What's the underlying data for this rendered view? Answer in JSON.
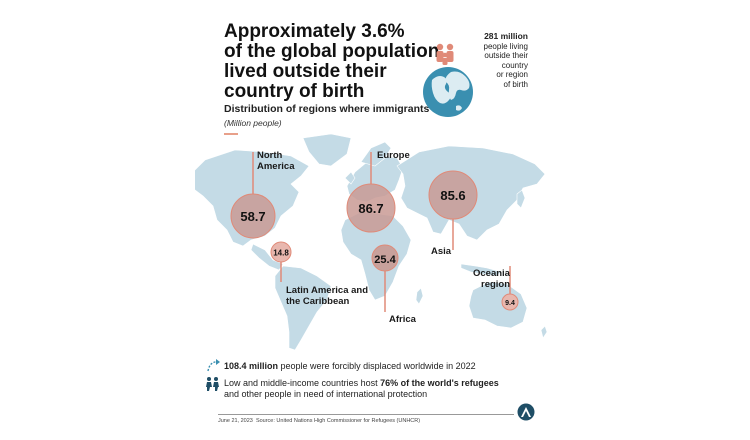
{
  "title_line1": "Approximately 3.6%",
  "title_line2": "of the global population",
  "title_line3": "lived outside their",
  "title_line4": "country of birth",
  "subtitle": "Distribution of regions where immigrants live",
  "unit": "(Million people)",
  "total": {
    "value": "281 million",
    "line1": "people living",
    "line2": "outside their",
    "line3": "country",
    "line4": "or region",
    "line5": "of birth"
  },
  "regions": [
    {
      "name_line1": "North",
      "name_line2": "America",
      "value": "58.7"
    },
    {
      "name": "Europe",
      "value": "86.7"
    },
    {
      "name": "Asia",
      "value": "85.6"
    },
    {
      "name_line1": "Latin America and",
      "name_line2": "the Caribbean",
      "value": "14.8"
    },
    {
      "name": "Africa",
      "value": "25.4"
    },
    {
      "name_line1": "Oceania",
      "name_line2": "region",
      "value": "9.4"
    }
  ],
  "note1_bold": "108.4 million",
  "note1_rest": " people were forcibly displaced worldwide in 2022",
  "note2_start": "Low and middle-income countries host ",
  "note2_bold": "76% of the world's refugees",
  "note2_line2": "and other people in need of international protection",
  "date": "June 21, 2023",
  "source": "Source: United Nations High Commissioner for Refugees (UNHCR)",
  "colors": {
    "accent": "#e08a78",
    "bubble": "#c99a94",
    "land": "#c4dbe6",
    "ocean": "#3a8fb0"
  }
}
